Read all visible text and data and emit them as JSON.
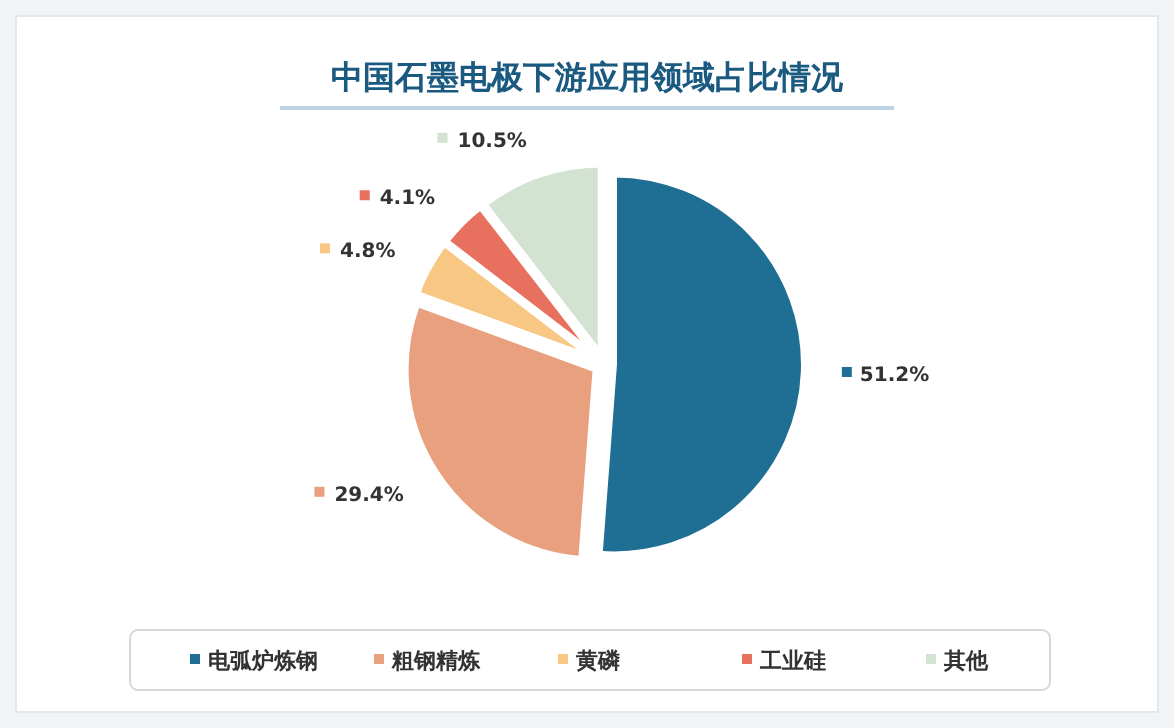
{
  "chart_data": {
    "type": "pie",
    "title": "中国石墨电极下游应用领域占比情况",
    "categories": [
      "电弧炉炼钢",
      "粗钢精炼",
      "黄磷",
      "工业硅",
      "其他"
    ],
    "values": [
      51.2,
      29.4,
      4.8,
      4.1,
      10.5
    ],
    "colors": [
      "#1f6e94",
      "#e8a07e",
      "#f9c784",
      "#e8705e",
      "#d3e3d2"
    ],
    "value_labels": [
      "51.2%",
      "29.4%",
      "4.8%",
      "4.1%",
      "10.5%"
    ],
    "legend": "bottom"
  }
}
